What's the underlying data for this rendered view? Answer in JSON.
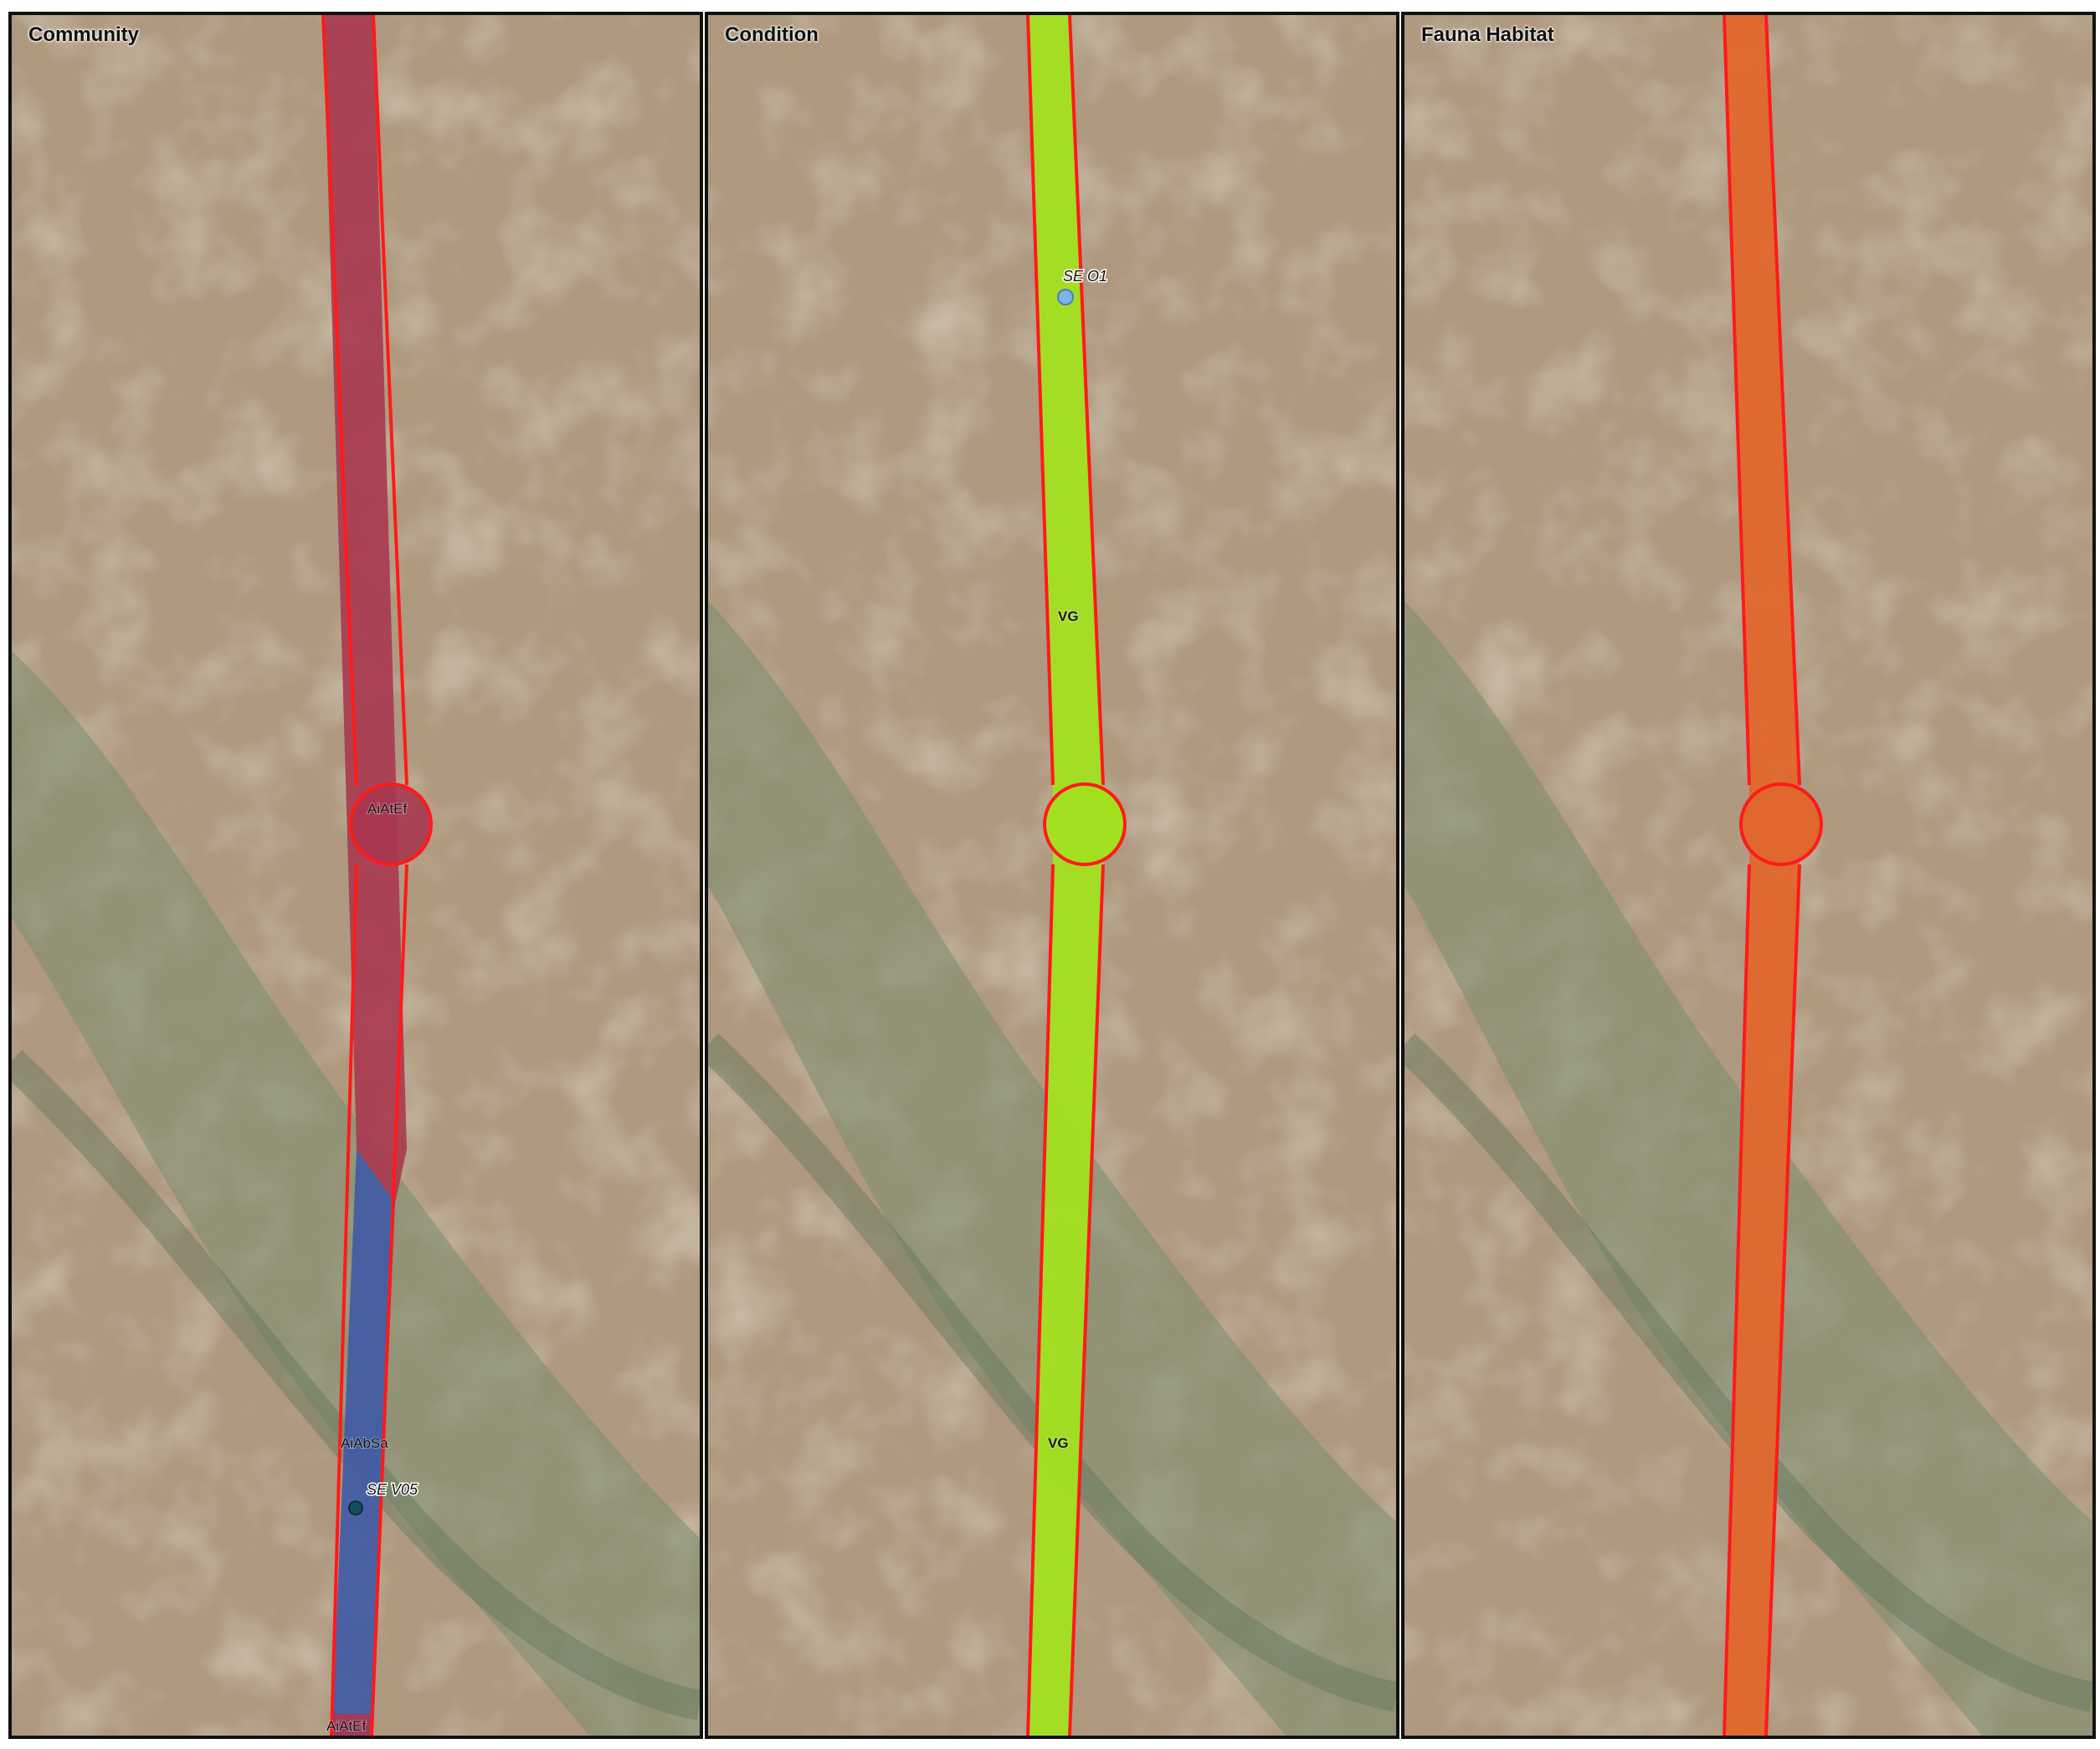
{
  "panels": [
    {
      "title": "Community",
      "colors": {
        "primary": "#a8354e",
        "secondary": "#3f5aa6",
        "outline": "#ff1a1a"
      },
      "labels": [
        "AiAtEf",
        "AiAbSa",
        "AiAtEf"
      ],
      "site": {
        "label": "SE V05",
        "color": "#124e5a"
      }
    },
    {
      "title": "Condition",
      "colors": {
        "primary": "#a3e020",
        "outline": "#ff1a1a"
      },
      "labels": [
        "VG",
        "VG"
      ],
      "site": {
        "label": "SE O1",
        "color": "#7fb3e6"
      }
    },
    {
      "title": "Fauna Habitat",
      "colors": {
        "primary": "#e0672d",
        "outline": "#ff1a1a"
      }
    }
  ],
  "imagery": {
    "base": "#b39a7f",
    "light": "#c8b49a",
    "veg": "#6f8a6a",
    "sand": "#d6c4a8"
  }
}
